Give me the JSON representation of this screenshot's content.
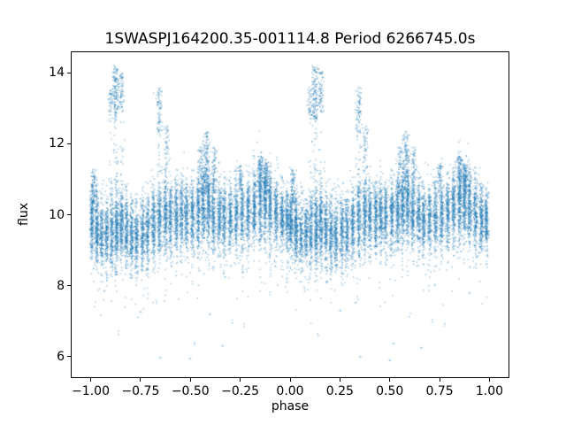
{
  "chart_data": {
    "type": "scatter",
    "title": "1SWASPJ164200.35-001114.8 Period 6266745.0s",
    "xlabel": "phase",
    "ylabel": "flux",
    "xlim": [
      -1.1,
      1.1
    ],
    "ylim": [
      5.4,
      14.6
    ],
    "xticks": [
      {
        "value": -1.0,
        "label": "−1.00"
      },
      {
        "value": -0.75,
        "label": "−0.75"
      },
      {
        "value": -0.5,
        "label": "−0.50"
      },
      {
        "value": -0.25,
        "label": "−0.25"
      },
      {
        "value": 0.0,
        "label": "0.00"
      },
      {
        "value": 0.25,
        "label": "0.25"
      },
      {
        "value": 0.5,
        "label": "0.50"
      },
      {
        "value": 0.75,
        "label": "0.75"
      },
      {
        "value": 1.0,
        "label": "1.00"
      }
    ],
    "yticks": [
      {
        "value": 6,
        "label": "6"
      },
      {
        "value": 8,
        "label": "8"
      },
      {
        "value": 10,
        "label": "10"
      },
      {
        "value": 12,
        "label": "12"
      },
      {
        "value": 14,
        "label": "14"
      }
    ],
    "grid": false,
    "legend": null,
    "marker": {
      "color": "#1f77b4",
      "alpha": 0.45,
      "size": 1.4
    },
    "series_description": "Folded stellar light curve; phase range [0,1) duplicated at [-1,0); dense striped band of flux ~8.5-11 with brightening clusters up to 14.2 and sparse faint outliers down to ~5.9",
    "point_distribution": {
      "seed": 42,
      "xjitter": 0.005,
      "low_tail": {
        "prob": 0.05,
        "max_drop": 1.6
      },
      "background": {
        "n": 1400,
        "mean": 9.9,
        "sd": 0.6
      },
      "cluster_trail_fraction": 0.2,
      "stripes": [
        {
          "p": 0.005,
          "n": 240,
          "mean": 9.8,
          "sd": 0.45
        },
        {
          "p": 0.03,
          "n": 280,
          "mean": 9.55,
          "sd": 0.5
        },
        {
          "p": 0.055,
          "n": 200,
          "mean": 9.45,
          "sd": 0.45
        },
        {
          "p": 0.08,
          "n": 210,
          "mean": 9.5,
          "sd": 0.42
        },
        {
          "p": 0.105,
          "n": 230,
          "mean": 9.55,
          "sd": 0.5
        },
        {
          "p": 0.13,
          "n": 300,
          "mean": 9.65,
          "sd": 0.55
        },
        {
          "p": 0.155,
          "n": 260,
          "mean": 9.75,
          "sd": 0.5
        },
        {
          "p": 0.18,
          "n": 230,
          "mean": 9.6,
          "sd": 0.5
        },
        {
          "p": 0.205,
          "n": 220,
          "mean": 9.45,
          "sd": 0.48
        },
        {
          "p": 0.23,
          "n": 220,
          "mean": 9.35,
          "sd": 0.45
        },
        {
          "p": 0.26,
          "n": 230,
          "mean": 9.45,
          "sd": 0.5
        },
        {
          "p": 0.285,
          "n": 230,
          "mean": 9.55,
          "sd": 0.5
        },
        {
          "p": 0.315,
          "n": 240,
          "mean": 9.7,
          "sd": 0.52
        },
        {
          "p": 0.345,
          "n": 260,
          "mean": 9.9,
          "sd": 0.55
        },
        {
          "p": 0.375,
          "n": 250,
          "mean": 10.0,
          "sd": 0.5
        },
        {
          "p": 0.4,
          "n": 230,
          "mean": 9.95,
          "sd": 0.48
        },
        {
          "p": 0.43,
          "n": 240,
          "mean": 10.0,
          "sd": 0.5
        },
        {
          "p": 0.455,
          "n": 230,
          "mean": 10.05,
          "sd": 0.5
        },
        {
          "p": 0.48,
          "n": 220,
          "mean": 10.0,
          "sd": 0.46
        },
        {
          "p": 0.51,
          "n": 230,
          "mean": 10.0,
          "sd": 0.5
        },
        {
          "p": 0.54,
          "n": 240,
          "mean": 10.1,
          "sd": 0.52
        },
        {
          "p": 0.565,
          "n": 260,
          "mean": 10.3,
          "sd": 0.55
        },
        {
          "p": 0.59,
          "n": 250,
          "mean": 10.25,
          "sd": 0.52
        },
        {
          "p": 0.615,
          "n": 230,
          "mean": 10.1,
          "sd": 0.5
        },
        {
          "p": 0.645,
          "n": 220,
          "mean": 10.0,
          "sd": 0.48
        },
        {
          "p": 0.67,
          "n": 220,
          "mean": 9.95,
          "sd": 0.48
        },
        {
          "p": 0.7,
          "n": 220,
          "mean": 9.9,
          "sd": 0.47
        },
        {
          "p": 0.73,
          "n": 220,
          "mean": 9.95,
          "sd": 0.48
        },
        {
          "p": 0.76,
          "n": 230,
          "mean": 10.0,
          "sd": 0.5
        },
        {
          "p": 0.79,
          "n": 240,
          "mean": 10.1,
          "sd": 0.5
        },
        {
          "p": 0.82,
          "n": 250,
          "mean": 10.25,
          "sd": 0.52
        },
        {
          "p": 0.85,
          "n": 270,
          "mean": 10.4,
          "sd": 0.55
        },
        {
          "p": 0.875,
          "n": 280,
          "mean": 10.45,
          "sd": 0.52
        },
        {
          "p": 0.9,
          "n": 260,
          "mean": 10.25,
          "sd": 0.5
        },
        {
          "p": 0.93,
          "n": 240,
          "mean": 10.05,
          "sd": 0.48
        },
        {
          "p": 0.96,
          "n": 230,
          "mean": 9.95,
          "sd": 0.45
        },
        {
          "p": 0.985,
          "n": 230,
          "mean": 9.85,
          "sd": 0.45
        }
      ],
      "clusters": [
        {
          "p": 0.015,
          "w": 0.006,
          "ymin": 10.4,
          "ymax": 11.3,
          "n": 80
        },
        {
          "p": 0.1,
          "w": 0.006,
          "ymin": 12.8,
          "ymax": 13.6,
          "n": 40
        },
        {
          "p": 0.125,
          "w": 0.008,
          "ymin": 12.7,
          "ymax": 14.2,
          "n": 140
        },
        {
          "p": 0.155,
          "w": 0.007,
          "ymin": 12.9,
          "ymax": 14.05,
          "n": 70
        },
        {
          "p": 0.345,
          "w": 0.008,
          "ymin": 12.3,
          "ymax": 13.6,
          "n": 80
        },
        {
          "p": 0.38,
          "w": 0.007,
          "ymin": 11.3,
          "ymax": 12.5,
          "n": 50
        },
        {
          "p": 0.55,
          "w": 0.007,
          "ymin": 10.7,
          "ymax": 11.9,
          "n": 70
        },
        {
          "p": 0.58,
          "w": 0.009,
          "ymin": 10.8,
          "ymax": 12.35,
          "n": 150
        },
        {
          "p": 0.62,
          "w": 0.007,
          "ymin": 10.9,
          "ymax": 11.9,
          "n": 60
        },
        {
          "p": 0.75,
          "w": 0.007,
          "ymin": 10.8,
          "ymax": 11.4,
          "n": 50
        },
        {
          "p": 0.85,
          "w": 0.009,
          "ymin": 10.9,
          "ymax": 11.65,
          "n": 90
        },
        {
          "p": 0.88,
          "w": 0.008,
          "ymin": 10.8,
          "ymax": 11.5,
          "n": 70
        }
      ],
      "outliers": [
        {
          "p": 0.14,
          "y": 6.62
        },
        {
          "p": 0.33,
          "y": 7.55
        },
        {
          "p": 0.35,
          "y": 6.0
        },
        {
          "p": 0.5,
          "y": 5.92
        },
        {
          "p": 0.52,
          "y": 6.35
        },
        {
          "p": 0.66,
          "y": 6.3
        },
        {
          "p": 0.71,
          "y": 7.0
        },
        {
          "p": 0.77,
          "y": 6.9
        },
        {
          "p": 0.9,
          "y": 7.75
        },
        {
          "p": 0.25,
          "y": 7.3
        },
        {
          "p": 0.07,
          "y": 7.9
        },
        {
          "p": 0.6,
          "y": 7.2
        }
      ]
    }
  }
}
